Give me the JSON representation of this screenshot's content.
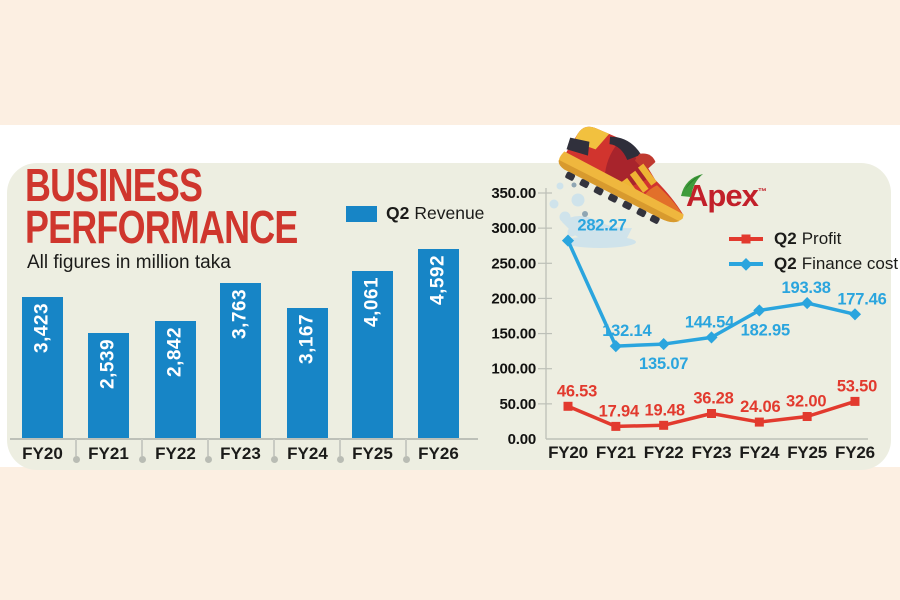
{
  "header": {
    "title_line1": "BUSINESS",
    "title_line2": "PERFORMANCE",
    "subtitle": "All figures in million taka"
  },
  "brand": {
    "name": "Apex",
    "tm": "™"
  },
  "colors": {
    "bar_blue": "#1785c6",
    "line_blue": "#2aa5de",
    "line_red": "#e23a2e",
    "title_red": "#cf362d",
    "panel_cream": "#edeee1",
    "band_peach": "#fcefe2",
    "axis_gray": "#bdc0b8",
    "text_dark": "#1b1b19"
  },
  "chart_data": [
    {
      "type": "bar",
      "legend": {
        "strong": "Q2",
        "rest": "Revenue"
      },
      "categories": [
        "FY20",
        "FY21",
        "FY22",
        "FY23",
        "FY24",
        "FY25",
        "FY26"
      ],
      "values": [
        3423,
        2539,
        2842,
        3763,
        3167,
        4061,
        4592
      ],
      "value_labels": [
        "3,423",
        "2,539",
        "2,842",
        "3,763",
        "3,167",
        "4,061",
        "4,592"
      ],
      "ylim": [
        0,
        4800
      ],
      "grid": false
    },
    {
      "type": "line",
      "categories": [
        "FY20",
        "FY21",
        "FY22",
        "FY23",
        "FY24",
        "FY25",
        "FY26"
      ],
      "ylim": [
        0,
        350
      ],
      "ytick_labels": [
        "0.00",
        "50.00",
        "100.00",
        "150.00",
        "200.00",
        "250.00",
        "300.00",
        "350.00"
      ],
      "legend_position": "top-right",
      "series": [
        {
          "name_strong": "Q2",
          "name_rest": "Profit",
          "color": "#e23a2e",
          "marker": "square",
          "values": [
            46.53,
            17.94,
            19.48,
            36.28,
            24.06,
            32.0,
            53.5
          ],
          "labels": [
            "46.53",
            "17.94",
            "19.48",
            "36.28",
            "24.06",
            "32.00",
            "53.50"
          ],
          "label_pos": [
            "above",
            "above",
            "above",
            "above",
            "above",
            "above",
            "above"
          ],
          "label_dx": [
            9,
            3,
            1,
            2,
            1,
            -1,
            2
          ]
        },
        {
          "name_strong": "Q2",
          "name_rest": "Finance cost",
          "color": "#2aa5de",
          "marker": "diamond",
          "values": [
            282.27,
            132.14,
            135.07,
            144.54,
            182.95,
            193.38,
            177.46
          ],
          "labels": [
            "282.27",
            "132.14",
            "135.07",
            "144.54",
            "182.95",
            "193.38",
            "177.46"
          ],
          "label_pos": [
            "above",
            "above",
            "below",
            "above",
            "below",
            "above",
            "above"
          ],
          "label_dx": [
            34,
            11,
            0,
            -2,
            6,
            -1,
            7
          ]
        }
      ]
    }
  ]
}
